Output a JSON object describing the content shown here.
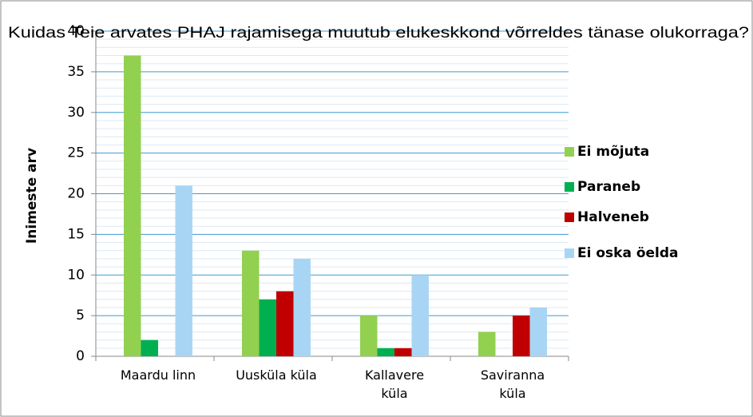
{
  "chart_data": {
    "type": "bar",
    "title": "Kuidas Teie arvates PHAJ rajamisega muutub elukeskkond võrreldes tänase olukorraga?",
    "y_label": "Inimeste arv",
    "categories": [
      "Maardu linn",
      "Uusküla küla",
      "Kallavere\nküla",
      "Saviranna\nküla"
    ],
    "series": [
      {
        "name": "Ei mõjuta",
        "color": "#92d050",
        "values": [
          37,
          13,
          5,
          3
        ]
      },
      {
        "name": "Paraneb",
        "color": "#00b050",
        "values": [
          2,
          7,
          1,
          0
        ]
      },
      {
        "name": "Halveneb",
        "color": "#c00000",
        "values": [
          0,
          8,
          1,
          5
        ]
      },
      {
        "name": "Ei oska öelda",
        "color": "#a9d5f5",
        "values": [
          21,
          12,
          10,
          6
        ]
      }
    ],
    "ylim": [
      0,
      40
    ],
    "yticks": [
      0,
      5,
      10,
      15,
      20,
      25,
      30,
      35,
      40
    ],
    "grid": true,
    "legend": "right"
  }
}
